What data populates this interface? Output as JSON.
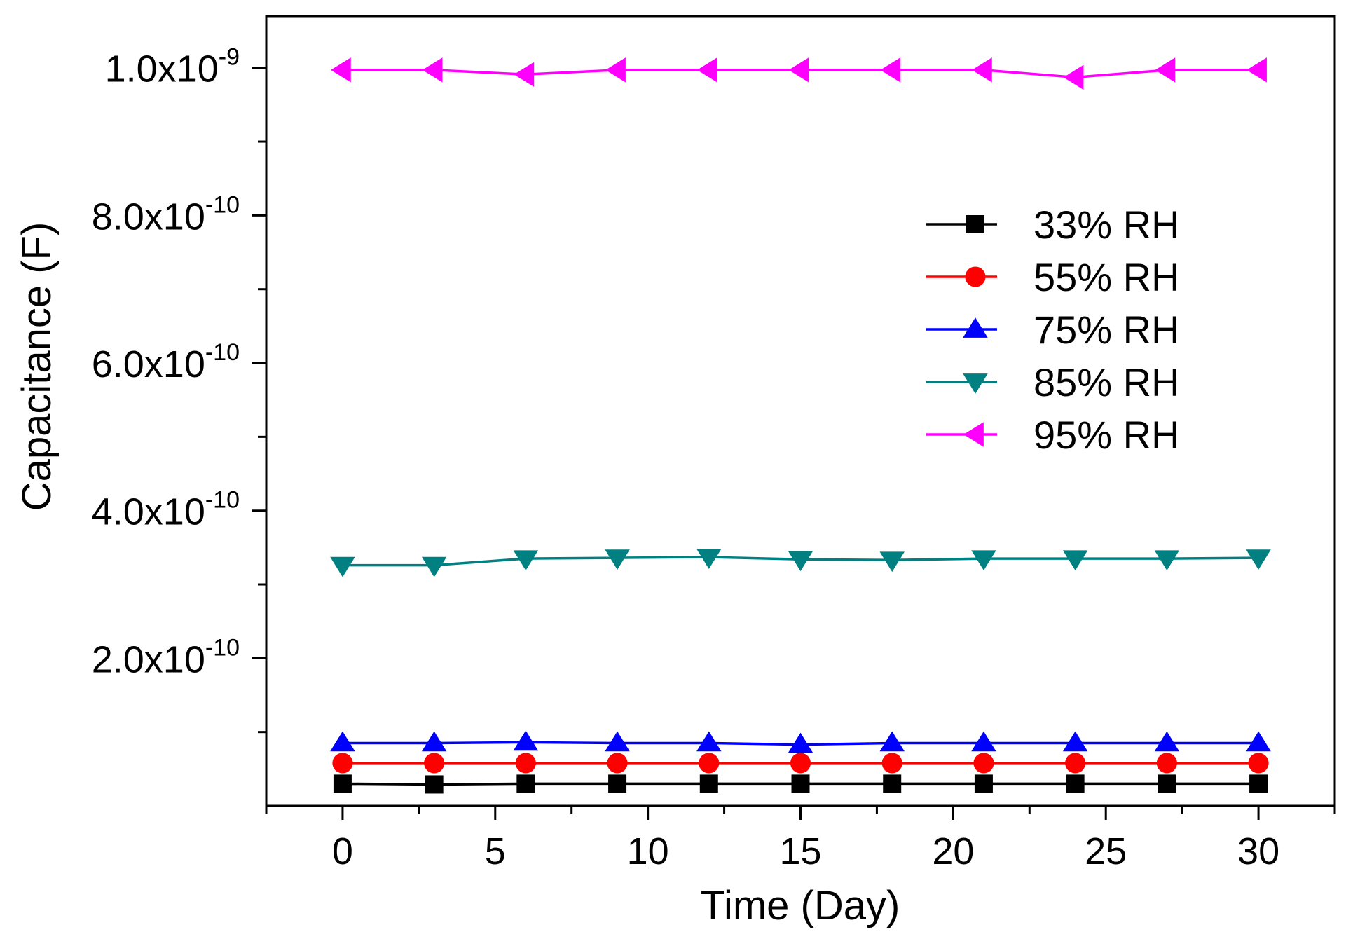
{
  "chart_data": {
    "type": "line",
    "title": "",
    "xlabel": "Time (Day)",
    "ylabel": "Capacitance (F)",
    "xlim": [
      -2.5,
      32.5
    ],
    "ylim": [
      0,
      1.07e-09
    ],
    "x_ticks": [
      0,
      5,
      10,
      15,
      20,
      25,
      30
    ],
    "x_tick_labels": [
      "0",
      "5",
      "10",
      "15",
      "20",
      "25",
      "30"
    ],
    "y_ticks": [
      2e-10,
      4e-10,
      6e-10,
      8e-10,
      1e-09
    ],
    "y_tick_labels": [
      {
        "mantissa": "2.0x10",
        "exponent": "-10"
      },
      {
        "mantissa": "4.0x10",
        "exponent": "-10"
      },
      {
        "mantissa": "6.0x10",
        "exponent": "-10"
      },
      {
        "mantissa": "8.0x10",
        "exponent": "-10"
      },
      {
        "mantissa": "1.0x10",
        "exponent": "-9"
      }
    ],
    "x": [
      0,
      3,
      6,
      9,
      12,
      15,
      18,
      21,
      24,
      27,
      30
    ],
    "legend_position": "right-upper",
    "grid": false,
    "series": [
      {
        "name": "33% RH",
        "color": "#000000",
        "marker": "square",
        "values": [
          3e-11,
          2.9e-11,
          3e-11,
          3e-11,
          3e-11,
          3e-11,
          3e-11,
          3e-11,
          3e-11,
          3e-11,
          3e-11
        ]
      },
      {
        "name": "55% RH",
        "color": "#ff0000",
        "marker": "circle",
        "values": [
          5.8e-11,
          5.8e-11,
          5.8e-11,
          5.8e-11,
          5.8e-11,
          5.8e-11,
          5.8e-11,
          5.8e-11,
          5.8e-11,
          5.8e-11,
          5.8e-11
        ]
      },
      {
        "name": "75% RH",
        "color": "#0000ff",
        "marker": "triangle-up",
        "values": [
          8.5e-11,
          8.5e-11,
          8.6e-11,
          8.5e-11,
          8.5e-11,
          8.3e-11,
          8.5e-11,
          8.5e-11,
          8.5e-11,
          8.5e-11,
          8.5e-11
        ]
      },
      {
        "name": "85% RH",
        "color": "#008080",
        "marker": "triangle-down",
        "values": [
          3.26e-10,
          3.26e-10,
          3.35e-10,
          3.36e-10,
          3.37e-10,
          3.34e-10,
          3.33e-10,
          3.35e-10,
          3.35e-10,
          3.35e-10,
          3.36e-10
        ]
      },
      {
        "name": "95% RH",
        "color": "#ff00ff",
        "marker": "triangle-left",
        "values": [
          9.97e-10,
          9.97e-10,
          9.91e-10,
          9.97e-10,
          9.97e-10,
          9.97e-10,
          9.97e-10,
          9.97e-10,
          9.87e-10,
          9.97e-10,
          9.97e-10
        ]
      }
    ]
  }
}
